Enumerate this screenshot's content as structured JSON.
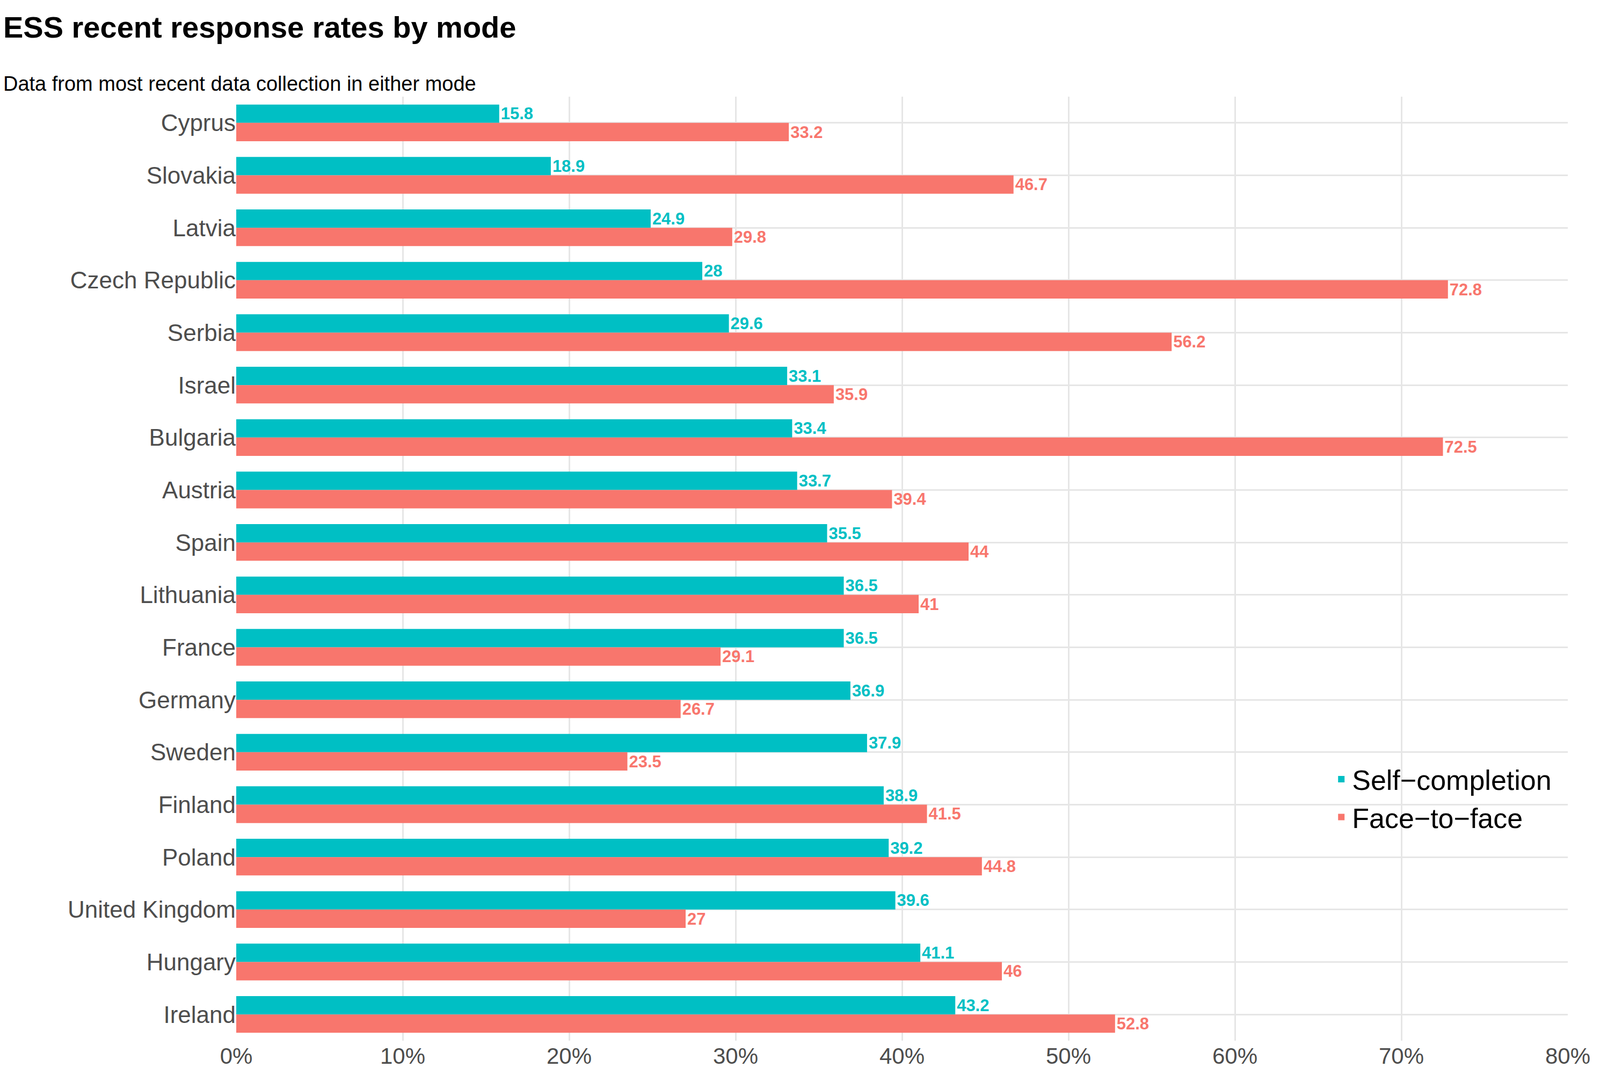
{
  "chart_data": {
    "type": "bar",
    "orientation": "horizontal",
    "title": "ESS recent response rates by mode",
    "subtitle": "Data from most recent data collection in either mode",
    "categories": [
      "Cyprus",
      "Slovakia",
      "Latvia",
      "Czech Republic",
      "Serbia",
      "Israel",
      "Bulgaria",
      "Austria",
      "Spain",
      "Lithuania",
      "France",
      "Germany",
      "Sweden",
      "Finland",
      "Poland",
      "United Kingdom",
      "Hungary",
      "Ireland"
    ],
    "series": [
      {
        "name": "Self−completion",
        "color": "#00BFC4",
        "values": [
          15.8,
          18.9,
          24.9,
          28,
          29.6,
          33.1,
          33.4,
          33.7,
          35.5,
          36.5,
          36.5,
          36.9,
          37.9,
          38.9,
          39.2,
          39.6,
          41.1,
          43.2
        ]
      },
      {
        "name": "Face−to−face",
        "color": "#F8766D",
        "values": [
          33.2,
          46.7,
          29.8,
          72.8,
          56.2,
          35.9,
          72.5,
          39.4,
          44,
          41,
          29.1,
          26.7,
          23.5,
          41.5,
          44.8,
          27,
          46,
          52.8
        ]
      }
    ],
    "xlim": [
      0,
      80
    ],
    "xticks": [
      {
        "value": 0,
        "label": "0%"
      },
      {
        "value": 10,
        "label": "10%"
      },
      {
        "value": 20,
        "label": "20%"
      },
      {
        "value": 30,
        "label": "30%"
      },
      {
        "value": 40,
        "label": "40%"
      },
      {
        "value": 50,
        "label": "50%"
      },
      {
        "value": 60,
        "label": "60%"
      },
      {
        "value": 70,
        "label": "70%"
      },
      {
        "value": 80,
        "label": "80%"
      }
    ],
    "grid": true,
    "legend": "bottom right",
    "data_labels": true
  }
}
